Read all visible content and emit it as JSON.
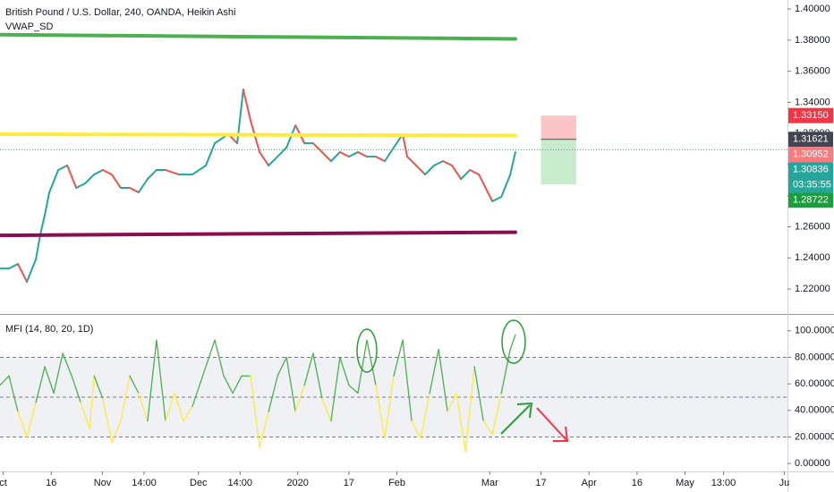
{
  "chart_data": [
    {
      "type": "line",
      "title": "British Pound / U.S. Dollar, 240, OANDA, Heikin Ashi",
      "subtitle": "VWAP_SD",
      "xlim": [
        -1,
        245
      ],
      "ylim": [
        1.2045,
        1.4058
      ],
      "yticks": [
        {
          "value": 1.22,
          "label": "1.22000"
        },
        {
          "value": 1.24,
          "label": "1.24000"
        },
        {
          "value": 1.26,
          "label": "1.26000"
        },
        {
          "value": 1.28,
          "label": "1.28000"
        },
        {
          "value": 1.3,
          "label": "1.30000"
        },
        {
          "value": 1.32,
          "label": "1.32000"
        },
        {
          "value": 1.34,
          "label": "1.34000"
        },
        {
          "value": 1.36,
          "label": "1.36000"
        },
        {
          "value": 1.38,
          "label": "1.38000"
        },
        {
          "value": 1.4,
          "label": "1.40000"
        }
      ],
      "series": [
        {
          "color": "#26a69a",
          "down_color": "#ef5350",
          "x": [
            -1,
            1.8,
            4.6,
            7.4,
            10.2,
            11.6,
            13,
            14.4,
            17.2,
            20,
            22.8,
            25.6,
            28.4,
            31.1,
            33.9,
            36.7,
            39.5,
            42.3,
            45.1,
            47.9,
            50.7,
            54.9,
            59.1,
            63.3,
            66.1,
            70.3,
            73.1,
            75,
            77.3,
            80.1,
            82.9,
            85.7,
            88.5,
            91.3,
            94.1,
            96.8,
            99.6,
            102.4,
            105.2,
            108,
            110.8,
            113.6,
            116.4,
            119.2,
            122,
            124.8,
            126.2,
            129,
            131.8,
            134.6,
            137.4,
            140.2,
            143,
            145.8,
            148.6,
            151.4,
            152.8,
            155.6,
            158.4,
            160
          ],
          "values": [
            1.2332,
            1.2332,
            1.2361,
            1.2246,
            1.239,
            1.2551,
            1.2677,
            1.2821,
            1.2965,
            1.2994,
            1.285,
            1.2879,
            1.2936,
            1.2965,
            1.2936,
            1.285,
            1.285,
            1.2821,
            1.2907,
            1.2965,
            1.2965,
            1.2936,
            1.2936,
            1.2994,
            1.3137,
            1.3195,
            1.3137,
            1.3482,
            1.3281,
            1.308,
            1.2994,
            1.3051,
            1.3109,
            1.3252,
            1.3137,
            1.3137,
            1.308,
            1.3022,
            1.308,
            1.3051,
            1.308,
            1.3051,
            1.3051,
            1.3022,
            1.3109,
            1.3195,
            1.3051,
            1.2994,
            1.2936,
            1.2994,
            1.3022,
            1.2994,
            1.2907,
            1.2965,
            1.2936,
            1.2821,
            1.2764,
            1.2792,
            1.2936,
            1.308
          ]
        },
        {
          "color": "#4caf50",
          "x": [
            -1,
            160
          ],
          "values": [
            1.3835,
            1.3808
          ]
        },
        {
          "color": "#ffeb3b",
          "x": [
            -1,
            160
          ],
          "values": [
            1.3195,
            1.3187
          ]
        },
        {
          "color": "#880e4f",
          "x": [
            -1,
            160
          ],
          "values": [
            1.2545,
            1.2565
          ]
        }
      ],
      "price_labels": [
        {
          "value": 1.3315,
          "label": "1.33150",
          "color": "#f23645"
        },
        {
          "value": 1.31621,
          "label": "1.31621",
          "color": "#434651"
        },
        {
          "value": 1.30952,
          "label": "1.30952",
          "color": "#f77c80"
        },
        {
          "value": 1.30836,
          "label": "1.30836",
          "color": "#26a69a",
          "sublabel": "03:35:55"
        },
        {
          "value": 1.28722,
          "label": "1.28722",
          "color": "#1b9e3e"
        }
      ],
      "position": {
        "x": [
          168,
          179
        ],
        "stop_color": "#fbc4c6",
        "target_color": "#c9ebcd"
      }
    },
    {
      "type": "line",
      "title": "MFI (14, 80, 20, 1D)",
      "xlim": [
        -1,
        245
      ],
      "ylim": [
        -6,
        112
      ],
      "xticks": [
        {
          "value": 0,
          "label": "ct"
        },
        {
          "value": 15,
          "label": "16"
        },
        {
          "value": 31,
          "label": "Nov"
        },
        {
          "value": 44,
          "label": "14:00"
        },
        {
          "value": 61,
          "label": "Dec"
        },
        {
          "value": 74,
          "label": "14:00"
        },
        {
          "value": 92,
          "label": "2020"
        },
        {
          "value": 108,
          "label": "17"
        },
        {
          "value": 123,
          "label": "Feb"
        },
        {
          "value": 152,
          "label": "Mar"
        },
        {
          "value": 168,
          "label": "17"
        },
        {
          "value": 183,
          "label": "Apr"
        },
        {
          "value": 198,
          "label": "16"
        },
        {
          "value": 213,
          "label": "May"
        },
        {
          "value": 225,
          "label": "13:00"
        },
        {
          "value": 244,
          "label": "Ju"
        }
      ],
      "yticks": [
        {
          "value": 0,
          "label": "0.00000"
        },
        {
          "value": 20,
          "label": "20.00000"
        },
        {
          "value": 40,
          "label": "40.00000"
        },
        {
          "value": 60,
          "label": "60.00000"
        },
        {
          "value": 80,
          "label": "80.00000"
        },
        {
          "value": 100,
          "label": "100.00000"
        }
      ],
      "bands": [
        20,
        50,
        80
      ],
      "band_fill": "#f0f1f4",
      "series": [
        {
          "colors": [
            "#f44336",
            "#ffeb3b",
            "#4caf50"
          ],
          "x": [
            -1,
            1.8,
            4.6,
            7.4,
            10.2,
            13,
            15.8,
            18.6,
            21.4,
            24.2,
            27,
            28.4,
            31.1,
            33.9,
            36.7,
            39.5,
            42.3,
            45.1,
            47.9,
            50.7,
            53.5,
            56.3,
            59.1,
            63.3,
            66.1,
            68.9,
            71.7,
            74.5,
            77.3,
            80.1,
            82.9,
            85.7,
            88.5,
            91.3,
            94.1,
            96.8,
            99.6,
            102.4,
            105.2,
            108,
            110.8,
            113.6,
            116.4,
            119.2,
            122,
            124.8,
            127.6,
            130.4,
            133.2,
            136,
            138.8,
            141.6,
            144.4,
            147.2,
            150,
            152.8,
            155.6,
            158.4,
            160
          ],
          "values": [
            59,
            66,
            39,
            20,
            46,
            73,
            53,
            83,
            66,
            46,
            26,
            66,
            49,
            16,
            32,
            66,
            53,
            32,
            93,
            32,
            53,
            32,
            43,
            73,
            93,
            66,
            53,
            66,
            66,
            12,
            39,
            66,
            80,
            39,
            59,
            83,
            49,
            32,
            80,
            59,
            53,
            93,
            59,
            19,
            66,
            93,
            32,
            19,
            53,
            86,
            39,
            53,
            9,
            73,
            32,
            22,
            53,
            86,
            97
          ]
        }
      ]
    }
  ]
}
